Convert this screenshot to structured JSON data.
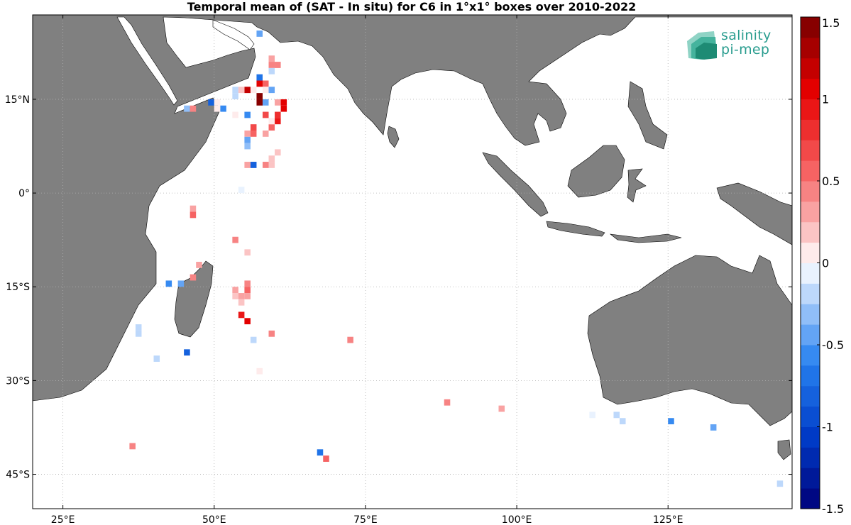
{
  "title": "Temporal mean of (SAT - In situ) for C6 in 1°x1° boxes over 2010-2022",
  "logo": {
    "line1": "salinity",
    "line2": "pi-mep",
    "color": "#2a9d8f"
  },
  "axes": {
    "lon_range": [
      20,
      145.5
    ],
    "lat_range": [
      -50.5,
      28.5
    ],
    "x_ticks": [
      {
        "value": 25,
        "label": "25°E"
      },
      {
        "value": 50,
        "label": "50°E"
      },
      {
        "value": 75,
        "label": "75°E"
      },
      {
        "value": 100,
        "label": "100°E"
      },
      {
        "value": 125,
        "label": "125°E"
      }
    ],
    "y_ticks": [
      {
        "value": 15,
        "label": "15°N"
      },
      {
        "value": 0,
        "label": "0°"
      },
      {
        "value": -15,
        "label": "15°S"
      },
      {
        "value": -30,
        "label": "30°S"
      },
      {
        "value": -45,
        "label": "45°S"
      }
    ],
    "grid": "dotted",
    "land_color": "#808080"
  },
  "colorbar": {
    "range": [
      -1.5,
      1.5
    ],
    "ticks": [
      {
        "value": 1.5,
        "label": "1.5"
      },
      {
        "value": 1,
        "label": "1"
      },
      {
        "value": 0.5,
        "label": "0.5"
      },
      {
        "value": 0,
        "label": "0"
      },
      {
        "value": -0.5,
        "label": "-0.5"
      },
      {
        "value": -1,
        "label": "-1"
      },
      {
        "value": -1.5,
        "label": "-1.5"
      }
    ]
  },
  "chart_data": {
    "type": "heatmap",
    "title": "Temporal mean of (SAT - In situ) for C6 in 1°x1° boxes over 2010-2022",
    "x_unit": "longitude (°E)",
    "y_unit": "latitude (°)",
    "value_range": [
      -1.5,
      1.5
    ],
    "boxes": [
      {
        "lon": 57.5,
        "lat": 25.5,
        "v": -0.45
      },
      {
        "lon": 59.5,
        "lat": 21.5,
        "v": 0.35
      },
      {
        "lon": 59.5,
        "lat": 20.5,
        "v": 0.45
      },
      {
        "lon": 60.5,
        "lat": 20.5,
        "v": 0.4
      },
      {
        "lon": 59.5,
        "lat": 19.5,
        "v": -0.25
      },
      {
        "lon": 57.5,
        "lat": 18.5,
        "v": -0.7
      },
      {
        "lon": 57.5,
        "lat": 17.5,
        "v": 1.05
      },
      {
        "lon": 58.5,
        "lat": 17.5,
        "v": 0.6
      },
      {
        "lon": 56.5,
        "lat": 16.5,
        "v": 0.1
      },
      {
        "lon": 58.5,
        "lat": 16.5,
        "v": 0.05
      },
      {
        "lon": 59.5,
        "lat": 16.5,
        "v": -0.4
      },
      {
        "lon": 55.5,
        "lat": 16.5,
        "v": 1.2
      },
      {
        "lon": 53.5,
        "lat": 16.5,
        "v": -0.2
      },
      {
        "lon": 54.5,
        "lat": 16.5,
        "v": 0.15
      },
      {
        "lon": 53.5,
        "lat": 15.5,
        "v": -0.15
      },
      {
        "lon": 57.5,
        "lat": 15.5,
        "v": 1.4
      },
      {
        "lon": 57.5,
        "lat": 14.5,
        "v": 1.45
      },
      {
        "lon": 58.5,
        "lat": 14.5,
        "v": -0.4
      },
      {
        "lon": 60.5,
        "lat": 14.5,
        "v": 0.25
      },
      {
        "lon": 61.5,
        "lat": 14.5,
        "v": 1.05
      },
      {
        "lon": 61.5,
        "lat": 13.5,
        "v": 1.0
      },
      {
        "lon": 49.5,
        "lat": 14.5,
        "v": -0.85
      },
      {
        "lon": 50.5,
        "lat": 14.5,
        "v": 0.1
      },
      {
        "lon": 51.5,
        "lat": 13.5,
        "v": -0.55
      },
      {
        "lon": 50.5,
        "lat": 13.5,
        "v": 0.05
      },
      {
        "lon": 45.5,
        "lat": 13.5,
        "v": -0.3
      },
      {
        "lon": 46.5,
        "lat": 13.5,
        "v": 0.45
      },
      {
        "lon": 53.5,
        "lat": 12.5,
        "v": 0.05
      },
      {
        "lon": 55.5,
        "lat": 12.5,
        "v": -0.6
      },
      {
        "lon": 58.5,
        "lat": 12.5,
        "v": 0.7
      },
      {
        "lon": 60.5,
        "lat": 12.5,
        "v": 0.85
      },
      {
        "lon": 60.5,
        "lat": 11.5,
        "v": 0.9
      },
      {
        "lon": 59.5,
        "lat": 10.5,
        "v": 0.6
      },
      {
        "lon": 59.5,
        "lat": 11.5,
        "v": 0.1
      },
      {
        "lon": 56.5,
        "lat": 10.5,
        "v": 0.65
      },
      {
        "lon": 55.5,
        "lat": 9.5,
        "v": 0.35
      },
      {
        "lon": 56.5,
        "lat": 9.5,
        "v": 0.55
      },
      {
        "lon": 58.5,
        "lat": 9.5,
        "v": 0.3
      },
      {
        "lon": 55.5,
        "lat": 8.5,
        "v": -0.5
      },
      {
        "lon": 55.5,
        "lat": 7.5,
        "v": -0.3
      },
      {
        "lon": 60.5,
        "lat": 6.5,
        "v": 0.15
      },
      {
        "lon": 59.5,
        "lat": 5.5,
        "v": 0.2
      },
      {
        "lon": 55.5,
        "lat": 4.5,
        "v": 0.35
      },
      {
        "lon": 56.5,
        "lat": 4.5,
        "v": -0.8
      },
      {
        "lon": 58.5,
        "lat": 4.5,
        "v": 0.4
      },
      {
        "lon": 59.5,
        "lat": 4.5,
        "v": 0.2
      },
      {
        "lon": 54.5,
        "lat": 0.5,
        "v": -0.1
      },
      {
        "lon": 46.5,
        "lat": -2.5,
        "v": 0.35
      },
      {
        "lon": 46.5,
        "lat": -3.5,
        "v": 0.5
      },
      {
        "lon": 53.5,
        "lat": -7.5,
        "v": 0.45
      },
      {
        "lon": 55.5,
        "lat": -9.5,
        "v": 0.15
      },
      {
        "lon": 47.5,
        "lat": -11.5,
        "v": 0.35
      },
      {
        "lon": 46.5,
        "lat": -13.5,
        "v": 0.45
      },
      {
        "lon": 42.5,
        "lat": -14.5,
        "v": -0.55
      },
      {
        "lon": 44.5,
        "lat": -14.5,
        "v": -0.5
      },
      {
        "lon": 55.5,
        "lat": -14.5,
        "v": 0.45
      },
      {
        "lon": 55.5,
        "lat": -15.5,
        "v": 0.55
      },
      {
        "lon": 53.5,
        "lat": -15.5,
        "v": 0.3
      },
      {
        "lon": 53.5,
        "lat": -16.5,
        "v": 0.2
      },
      {
        "lon": 54.5,
        "lat": -16.5,
        "v": 0.25
      },
      {
        "lon": 55.5,
        "lat": -16.5,
        "v": 0.35
      },
      {
        "lon": 54.5,
        "lat": -17.5,
        "v": 0.2
      },
      {
        "lon": 54.5,
        "lat": -19.5,
        "v": 0.9
      },
      {
        "lon": 55.5,
        "lat": -20.5,
        "v": 1.05
      },
      {
        "lon": 37.5,
        "lat": -21.5,
        "v": -0.15
      },
      {
        "lon": 37.5,
        "lat": -22.5,
        "v": -0.25
      },
      {
        "lon": 59.5,
        "lat": -22.5,
        "v": 0.4
      },
      {
        "lon": 56.5,
        "lat": -23.5,
        "v": -0.25
      },
      {
        "lon": 72.5,
        "lat": -23.5,
        "v": 0.4
      },
      {
        "lon": 45.5,
        "lat": -25.5,
        "v": -0.85
      },
      {
        "lon": 40.5,
        "lat": -26.5,
        "v": -0.15
      },
      {
        "lon": 57.5,
        "lat": -28.5,
        "v": 0.1
      },
      {
        "lon": 88.5,
        "lat": -33.5,
        "v": 0.4
      },
      {
        "lon": 97.5,
        "lat": -34.5,
        "v": 0.3
      },
      {
        "lon": 112.5,
        "lat": -35.5,
        "v": -0.1
      },
      {
        "lon": 116.5,
        "lat": -35.5,
        "v": -0.15
      },
      {
        "lon": 117.5,
        "lat": -36.5,
        "v": -0.2
      },
      {
        "lon": 125.5,
        "lat": -36.5,
        "v": -0.55
      },
      {
        "lon": 132.5,
        "lat": -37.5,
        "v": -0.45
      },
      {
        "lon": 36.5,
        "lat": -40.5,
        "v": 0.4
      },
      {
        "lon": 67.5,
        "lat": -41.5,
        "v": -0.7
      },
      {
        "lon": 68.5,
        "lat": -42.5,
        "v": 0.55
      },
      {
        "lon": 143.5,
        "lat": -46.5,
        "v": -0.25
      }
    ]
  }
}
